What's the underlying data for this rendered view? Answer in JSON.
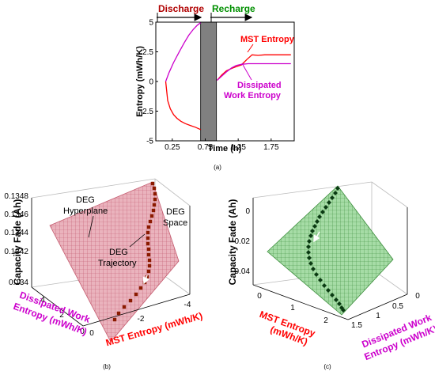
{
  "chart_data": [
    {
      "type": "line",
      "panel_label": "(a)",
      "xlabel": "Time (h)",
      "ylabel": "Entropy (mWh/K)",
      "xlim": [
        0,
        2.1
      ],
      "ylim": [
        -5,
        5
      ],
      "xticks": [
        0.25,
        0.75,
        1.25,
        1.75
      ],
      "yticks": [
        -5,
        -2.5,
        0,
        2.5,
        5
      ],
      "xtick_labels": [
        "0.25",
        "0.75",
        "1.25",
        "1.75"
      ],
      "ytick_labels": [
        "-5",
        "-2.5",
        "0",
        "2.5",
        "5"
      ],
      "phases": [
        {
          "label": "Discharge",
          "color": "#b00000"
        },
        {
          "label": "Recharge",
          "color": "#009000"
        }
      ],
      "rest_band": [
        0.68,
        0.92
      ],
      "series": [
        {
          "name": "MST Entropy",
          "color": "#ff0000",
          "discharge": {
            "x": [
              0.15,
              0.18,
              0.22,
              0.27,
              0.32,
              0.38,
              0.45,
              0.52,
              0.6,
              0.68
            ],
            "y": [
              0,
              -1.6,
              -2.3,
              -2.8,
              -3.1,
              -3.35,
              -3.55,
              -3.7,
              -3.85,
              -4.05
            ]
          },
          "recharge": {
            "x": [
              0.93,
              1.0,
              1.07,
              1.15,
              1.22,
              1.3,
              1.38,
              1.46,
              1.55,
              1.65,
              1.75,
              1.85,
              1.95,
              2.05
            ],
            "y": [
              0.1,
              0.55,
              0.9,
              1.1,
              1.25,
              1.4,
              1.85,
              2.25,
              2.2,
              2.25,
              2.25,
              2.25,
              2.25,
              2.25
            ]
          }
        },
        {
          "name": "Dissipated Work Entropy",
          "color": "#cc00cc",
          "discharge": {
            "x": [
              0.15,
              0.2,
              0.27,
              0.35,
              0.43,
              0.5,
              0.57,
              0.63,
              0.68
            ],
            "y": [
              0,
              0.75,
              1.6,
              2.45,
              3.25,
              3.9,
              4.4,
              4.75,
              4.95
            ]
          },
          "recharge": {
            "x": [
              0.93,
              1.0,
              1.08,
              1.15,
              1.22,
              1.3,
              1.4,
              1.55,
              1.75,
              2.05
            ],
            "y": [
              0.1,
              0.45,
              0.85,
              1.15,
              1.35,
              1.45,
              1.5,
              1.5,
              1.5,
              1.5
            ]
          }
        }
      ]
    },
    {
      "type": "scatter",
      "panel_label": "(b)",
      "zlabel": "Capacity Fade (Ah)",
      "xlabel": "MST Entropy (mWh/K)",
      "ylabel": "Dissipated Work Entropy (mWh/K)",
      "z_tick_labels": [
        "0.134",
        "0.1342",
        "0.1344",
        "0.1346",
        "0.1348"
      ],
      "x_tick_labels": [
        "0",
        "-2",
        "-4"
      ],
      "y_tick_labels": [
        "0",
        "2",
        "4"
      ],
      "annotations": [
        "DEG Hyperplane",
        "DEG Space",
        "DEG Trajectory"
      ],
      "plane_color": "#e6a0ac",
      "marker_color": "#8b1a00"
    },
    {
      "type": "scatter",
      "panel_label": "(c)",
      "zlabel": "Capacity Fade (Ah)",
      "xlabel": "MST Entropy (mWh/K)",
      "ylabel": "Dissipated Work Entropy (mWh/K)",
      "z_tick_labels": [
        "0",
        "-0.02",
        "-0.04"
      ],
      "x_tick_labels": [
        "0",
        "1",
        "2"
      ],
      "y_tick_labels": [
        "1.5",
        "1",
        "0.5",
        "0"
      ],
      "plane_color": "#8ccf8c",
      "marker_color": "#0a3a12"
    }
  ]
}
